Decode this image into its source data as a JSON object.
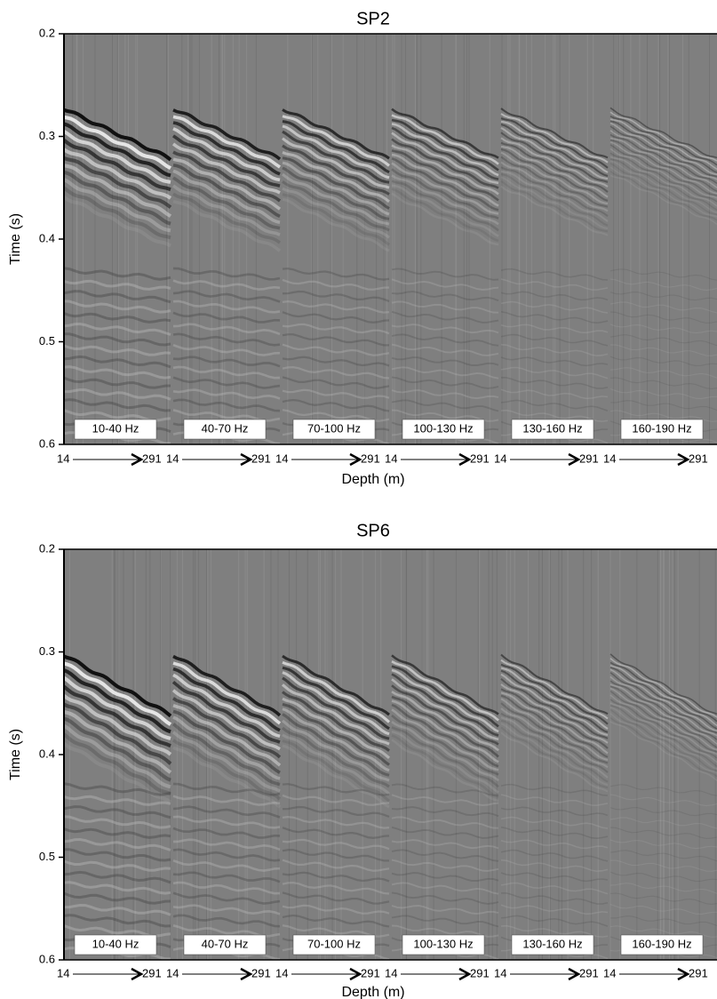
{
  "chart_data": [
    {
      "type": "seismic",
      "title": "SP2",
      "ylabel": "Time (s)",
      "xlabel": "Depth (m)",
      "ylim": [
        0.6,
        0.2
      ],
      "yticks": [
        0.2,
        0.3,
        0.4,
        0.5,
        0.6
      ],
      "categories": [
        "10-40 Hz",
        "40-70 Hz",
        "70-100 Hz",
        "100-130 Hz",
        "130-160 Hz",
        "160-190 Hz"
      ],
      "depth_range": [
        14,
        291
      ]
    },
    {
      "type": "seismic",
      "title": "SP6",
      "ylabel": "Time (s)",
      "xlabel": "Depth (m)",
      "ylim": [
        0.6,
        0.2
      ],
      "yticks": [
        0.2,
        0.3,
        0.4,
        0.5,
        0.6
      ],
      "categories": [
        "10-40 Hz",
        "40-70 Hz",
        "70-100 Hz",
        "100-130 Hz",
        "130-160 Hz",
        "160-190 Hz"
      ],
      "depth_range": [
        14,
        291
      ]
    }
  ]
}
